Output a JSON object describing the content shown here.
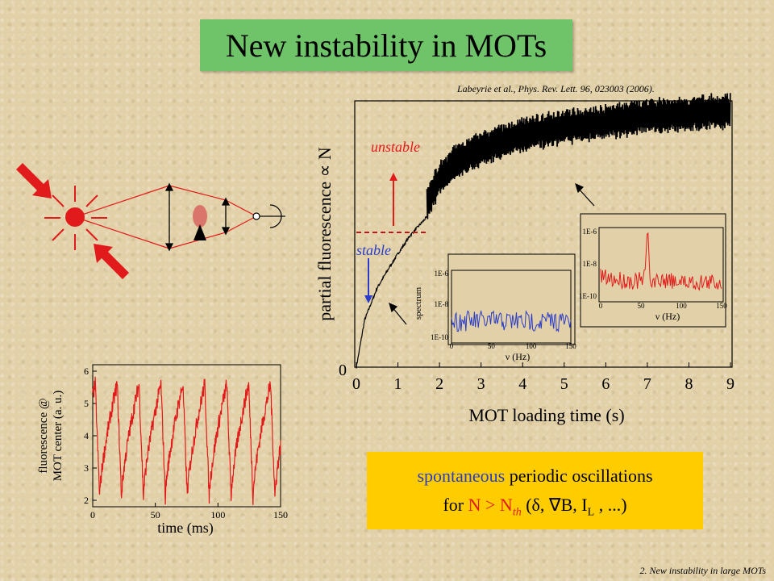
{
  "slide": {
    "title": "New instability in MOTs",
    "citation": "Labeyrie et al., Phys. Rev. Lett. 96, 023003 (2006).",
    "footer": "2. New instability in large MOTs"
  },
  "callout": {
    "line1_word1": "spontaneous",
    "line1_rest": " periodic oscillations",
    "line2_prefix": "for ",
    "line2_cond": "N > N",
    "line2_sub": "th",
    "line2_params": " (δ, ∇B, I",
    "line2_sub2": "L",
    "line2_end": " , ...)"
  },
  "colors": {
    "title_bg": "#6fc46a",
    "stable": "#2a3cc7",
    "unstable": "#e11b1b",
    "callout_bg": "#ffcc00"
  },
  "chart_data": [
    {
      "id": "main",
      "type": "line",
      "xlabel": "MOT loading time (s)",
      "ylabel": "partial fluorescence  ∝ N",
      "xticks": [
        "0",
        "1",
        "2",
        "3",
        "4",
        "5",
        "6",
        "7",
        "8",
        "9"
      ],
      "yticks": [
        "0"
      ],
      "xlim": [
        0,
        9
      ],
      "annotations": {
        "stable": "stable",
        "unstable": "unstable"
      },
      "threshold_time": 1.7,
      "series": [
        {
          "x": [
            0.0,
            0.2,
            0.5,
            0.8,
            1.0,
            1.3,
            1.7
          ],
          "y": [
            0.0,
            0.18,
            0.3,
            0.38,
            0.43,
            0.5,
            0.57
          ]
        },
        {
          "x": [
            1.7,
            2.0,
            2.5,
            3.0,
            4.0,
            5.0,
            6.0,
            7.0,
            8.0,
            9.0
          ],
          "y": [
            0.62,
            0.72,
            0.79,
            0.83,
            0.88,
            0.91,
            0.93,
            0.95,
            0.96,
            0.97
          ]
        }
      ]
    },
    {
      "id": "spectrum-stable",
      "type": "line",
      "ylabel": "spectrum",
      "xlabel": "ν (Hz)",
      "xticks": [
        "0",
        "50",
        "100",
        "150"
      ],
      "yticks": [
        "1E-6",
        "1E-8",
        "1E-10"
      ],
      "xlim": [
        0,
        150
      ]
    },
    {
      "id": "spectrum-unstable",
      "type": "line",
      "xlabel": "ν (Hz)",
      "xticks": [
        "0",
        "50",
        "100",
        "150"
      ],
      "yticks": [
        "1E-6",
        "1E-8",
        "1E-10"
      ],
      "xlim": [
        0,
        150
      ],
      "peak_hz": 58
    },
    {
      "id": "oscillation",
      "type": "line",
      "xlabel": "time (ms)",
      "ylabel_line1": "fluorescence @",
      "ylabel_line2": "MOT center (a. u.)",
      "xticks": [
        "0",
        "50",
        "100",
        "150"
      ],
      "yticks": [
        "2",
        "3",
        "4",
        "5",
        "6"
      ],
      "xlim": [
        0,
        150
      ],
      "ylim": [
        1.8,
        6.2
      ],
      "period_ms": 17.5,
      "min_value": 2.1,
      "max_value": 5.6
    }
  ]
}
